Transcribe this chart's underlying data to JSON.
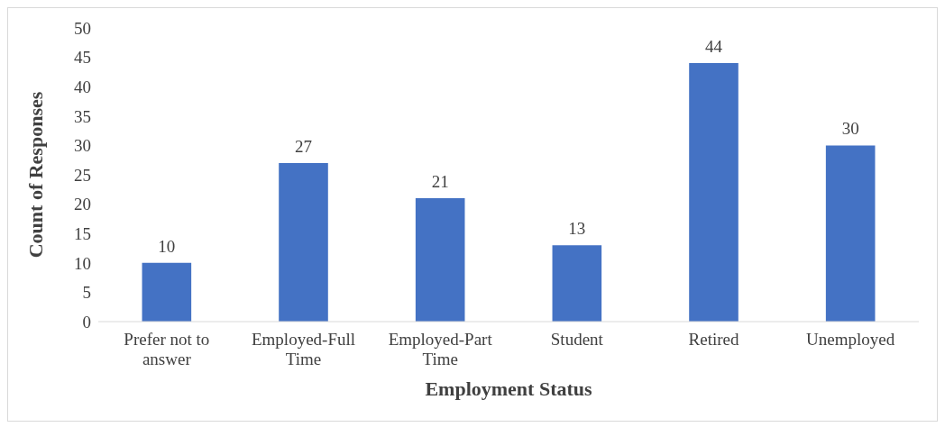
{
  "chart_data": {
    "type": "bar",
    "xlabel": "Employment Status",
    "ylabel": "Count of Responses",
    "categories": [
      "Prefer not to answer",
      "Employed-Full Time",
      "Employed-Part Time",
      "Student",
      "Retired",
      "Unemployed"
    ],
    "values": [
      10,
      27,
      21,
      13,
      44,
      30
    ],
    "color": "#4472c4",
    "ylim": [
      0,
      50
    ],
    "yticks": [
      0,
      5,
      10,
      15,
      20,
      25,
      30,
      35,
      40,
      45,
      50
    ],
    "grid": false,
    "data_labels": true
  }
}
